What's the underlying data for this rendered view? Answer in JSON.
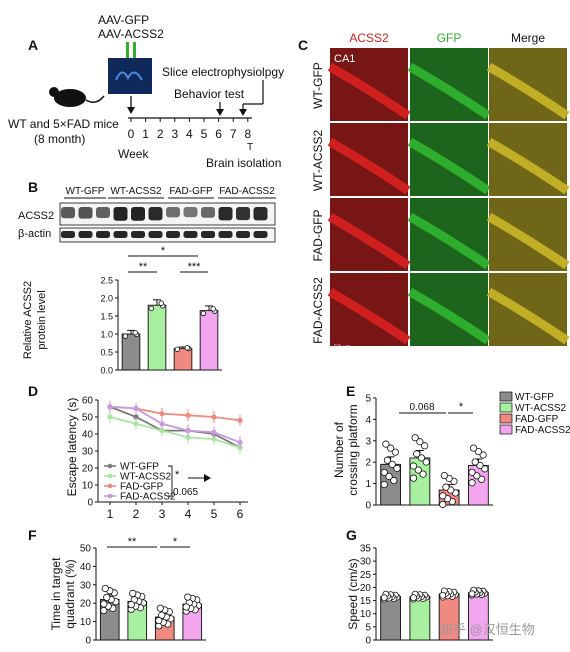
{
  "panelA": {
    "letter": "A",
    "virus1": "AAV-GFP",
    "virus2": "AAV-ACSS2",
    "mice": "WT and 5×FAD mice",
    "age": "(8 month)",
    "week_label": "Week",
    "weeks": [
      "0",
      "1",
      "2",
      "3",
      "4",
      "5",
      "6",
      "7",
      "8"
    ],
    "slice": "Slice electrophysiolpgy",
    "behavior": "Behavior test",
    "brain": "Brain isolation",
    "t_mark": "T"
  },
  "panelB": {
    "letter": "B",
    "groups": [
      "WT-GFP",
      "WT-ACSS2",
      "FAD-GFP",
      "FAD-ACSS2"
    ],
    "blot1": "ACSS2",
    "blot2": "β-actin",
    "ylabel1": "Relative ACSS2",
    "ylabel2": "protein level",
    "yticks": [
      "0.0",
      "0.5",
      "1.0",
      "1.5",
      "2.0",
      "2.5"
    ],
    "sig_top": "*",
    "sig_left": "**",
    "sig_right": "***"
  },
  "panelC": {
    "letter": "C",
    "col_headers": [
      "ACSS2",
      "GFP",
      "Merge"
    ],
    "row_labels": [
      "WT-GFP",
      "WT-ACSS2",
      "FAD-GFP",
      "FAD-ACSS2"
    ],
    "region": "CA1",
    "scale": "50 μm",
    "colors": {
      "red": "#d42020",
      "green": "#2fb12f",
      "merge": "#c4b227"
    }
  },
  "panelD": {
    "letter": "D",
    "ylabel": "Escape latency (s)",
    "yticks": [
      "0",
      "10",
      "20",
      "30",
      "40",
      "50",
      "60"
    ],
    "xticks": [
      "1",
      "2",
      "3",
      "4",
      "5",
      "6"
    ],
    "legend": [
      "WT-GFP",
      "WT-ACSS2",
      "FAD-GFP",
      "FAD-ACSS2"
    ],
    "sig": "*",
    "pval": "0.065"
  },
  "panelE": {
    "letter": "E",
    "ylabel1": "Number of",
    "ylabel2": "crossing platform",
    "yticks": [
      "0",
      "1",
      "2",
      "3",
      "4",
      "5"
    ],
    "pval": "0.068",
    "sig": "*",
    "legend": [
      "WT-GFP",
      "WT-ACSS2",
      "FAD-GFP",
      "FAD-ACSS2"
    ]
  },
  "panelF": {
    "letter": "F",
    "ylabel1": "Time in target",
    "ylabel2": "quadrant (%)",
    "yticks": [
      "0",
      "10",
      "20",
      "30",
      "40",
      "50"
    ],
    "sig_left": "**",
    "sig_right": "*"
  },
  "panelG": {
    "letter": "G",
    "ylabel": "Speed (cm/s)",
    "yticks": [
      "0",
      "5",
      "10",
      "15",
      "20",
      "25",
      "30",
      "35"
    ]
  },
  "watermark": "知乎 @汉恒生物",
  "chart_data": [
    {
      "type": "bar",
      "panel": "B",
      "ylabel": "Relative ACSS2 protein level",
      "categories": [
        "WT-GFP",
        "WT-ACSS2",
        "FAD-GFP",
        "FAD-ACSS2"
      ],
      "values": [
        1.0,
        1.8,
        0.6,
        1.65
      ],
      "errors": [
        0.1,
        0.15,
        0.04,
        0.13
      ],
      "ylim": [
        0,
        2.5
      ],
      "colors": [
        "#8c8c8c",
        "#a8f0a0",
        "#f08a80",
        "#f2a6f0"
      ]
    },
    {
      "type": "line",
      "panel": "D",
      "xlabel": "",
      "ylabel": "Escape latency (s)",
      "x": [
        1,
        2,
        3,
        4,
        5,
        6
      ],
      "ylim": [
        0,
        60
      ],
      "series": [
        {
          "name": "WT-GFP",
          "color": "#7a7a7a",
          "values": [
            56,
            50,
            42,
            42,
            40,
            32
          ]
        },
        {
          "name": "WT-ACSS2",
          "color": "#a8e89e",
          "values": [
            50,
            46,
            42,
            38,
            37,
            32
          ]
        },
        {
          "name": "FAD-GFP",
          "color": "#f08a80",
          "values": [
            56,
            55,
            52,
            51,
            50,
            48
          ]
        },
        {
          "name": "FAD-ACSS2",
          "color": "#c89ae0",
          "values": [
            56,
            55,
            46,
            42,
            41,
            35
          ]
        }
      ]
    },
    {
      "type": "bar",
      "panel": "E",
      "ylabel": "Number of crossing platform",
      "categories": [
        "WT-GFP",
        "WT-ACSS2",
        "FAD-GFP",
        "FAD-ACSS2"
      ],
      "values": [
        1.9,
        2.2,
        0.7,
        1.85
      ],
      "errors": [
        0.35,
        0.35,
        0.25,
        0.3
      ],
      "ylim": [
        0,
        5
      ]
    },
    {
      "type": "bar",
      "panel": "F",
      "ylabel": "Time in target quadrant (%)",
      "categories": [
        "WT-GFP",
        "WT-ACSS2",
        "FAD-GFP",
        "FAD-ACSS2"
      ],
      "values": [
        22,
        21,
        12.5,
        19.5
      ],
      "errors": [
        2.5,
        1.8,
        2.0,
        1.6
      ],
      "ylim": [
        0,
        50
      ]
    },
    {
      "type": "bar",
      "panel": "G",
      "ylabel": "Speed (cm/s)",
      "categories": [
        "WT-GFP",
        "WT-ACSS2",
        "FAD-GFP",
        "FAD-ACSS2"
      ],
      "values": [
        16.5,
        16.5,
        17.5,
        18
      ],
      "errors": [
        0.8,
        0.8,
        1.0,
        0.8
      ],
      "ylim": [
        0,
        35
      ]
    }
  ]
}
